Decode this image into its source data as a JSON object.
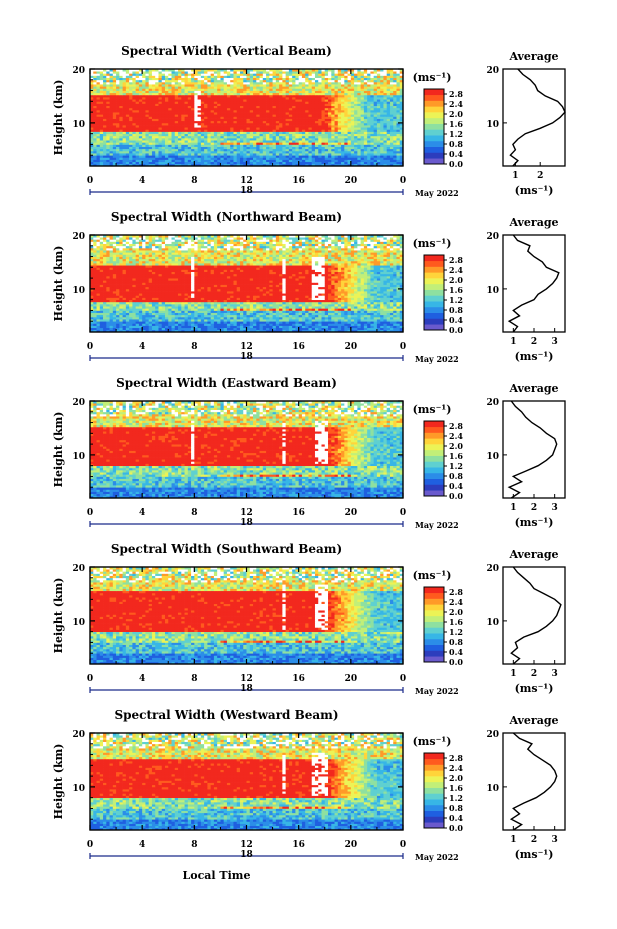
{
  "colors": {
    "colormap": [
      "#6a5acd",
      "#2c3dbd",
      "#1f5fe0",
      "#2b8de8",
      "#37b6e6",
      "#5fd0d0",
      "#8ee0a0",
      "#c2ef78",
      "#ecf356",
      "#ffd43a",
      "#ff9a28",
      "#ff5a1e",
      "#f2281e"
    ]
  },
  "chart_data": [
    {
      "type": "heatmap",
      "title": "Spectral Width (Vertical Beam)",
      "ylabel": "Height (km)",
      "xticks": [
        "0",
        "4",
        "8",
        "12",
        "16",
        "20",
        "0"
      ],
      "xlim": [
        0,
        24
      ],
      "yticks": [
        "10",
        "20"
      ],
      "ylim": [
        2,
        20
      ],
      "date_day": "18",
      "date_month": "May 2022",
      "colorbar": {
        "unit": "(ms⁻¹)",
        "ticks": [
          "2.8",
          "2.4",
          "2.0",
          "1.6",
          "1.2",
          "0.8",
          "0.4",
          "0.0"
        ],
        "range": [
          0,
          3.0
        ]
      },
      "band": {
        "bottom_km": 8.5,
        "top_km": 15.0,
        "fade_start_hour": 17.5,
        "fade_end_hour": 21.5,
        "gap_hours": [
          [
            8.0,
            8.4
          ]
        ]
      },
      "average": {
        "title": "Average",
        "xlabel": "(ms⁻¹)",
        "xticks": [
          "1",
          "2"
        ],
        "xlim": [
          0.5,
          3.0
        ],
        "profile": [
          [
            2,
            0.9
          ],
          [
            3,
            1.1
          ],
          [
            4,
            0.8
          ],
          [
            5,
            1.0
          ],
          [
            6,
            0.9
          ],
          [
            7,
            1.1
          ],
          [
            8,
            1.4
          ],
          [
            9,
            2.0
          ],
          [
            10,
            2.5
          ],
          [
            11,
            2.8
          ],
          [
            12,
            3.0
          ],
          [
            13,
            2.9
          ],
          [
            14,
            2.7
          ],
          [
            15,
            2.2
          ],
          [
            16,
            1.9
          ],
          [
            17,
            1.8
          ],
          [
            18,
            1.6
          ],
          [
            19,
            1.3
          ],
          [
            20,
            1.1
          ]
        ]
      }
    },
    {
      "type": "heatmap",
      "title": "Spectral Width (Northward Beam)",
      "ylabel": "Height (km)",
      "xticks": [
        "0",
        "4",
        "8",
        "12",
        "16",
        "20",
        "0"
      ],
      "xlim": [
        0,
        24
      ],
      "yticks": [
        "10",
        "20"
      ],
      "ylim": [
        2,
        20
      ],
      "date_day": "18",
      "date_month": "May 2022",
      "colorbar": {
        "unit": "(ms⁻¹)",
        "ticks": [
          "2.8",
          "2.4",
          "2.0",
          "1.6",
          "1.2",
          "0.8",
          "0.4",
          "0.0"
        ],
        "range": [
          0,
          3.0
        ]
      },
      "band": {
        "bottom_km": 7.5,
        "top_km": 14.5,
        "fade_start_hour": 18.0,
        "fade_end_hour": 22.0,
        "gap_hours": [
          [
            7.8,
            8.1
          ],
          [
            14.8,
            15.1
          ],
          [
            17.0,
            18.0
          ]
        ]
      },
      "average": {
        "title": "Average",
        "xlabel": "(ms⁻¹)",
        "xticks": [
          "1",
          "2",
          "3"
        ],
        "xlim": [
          0.5,
          3.5
        ],
        "profile": [
          [
            2,
            1.0
          ],
          [
            3,
            1.2
          ],
          [
            4,
            0.8
          ],
          [
            5,
            1.3
          ],
          [
            6,
            1.0
          ],
          [
            7,
            1.4
          ],
          [
            8,
            2.0
          ],
          [
            9,
            2.2
          ],
          [
            10,
            2.6
          ],
          [
            11,
            2.9
          ],
          [
            12,
            3.1
          ],
          [
            13,
            3.2
          ],
          [
            14,
            2.6
          ],
          [
            15,
            2.4
          ],
          [
            16,
            2.0
          ],
          [
            17,
            1.7
          ],
          [
            18,
            1.8
          ],
          [
            19,
            1.2
          ],
          [
            20,
            1.0
          ]
        ]
      }
    },
    {
      "type": "heatmap",
      "title": "Spectral Width (Eastward Beam)",
      "ylabel": "Height (km)",
      "xticks": [
        "0",
        "4",
        "8",
        "12",
        "16",
        "20",
        "0"
      ],
      "xlim": [
        0,
        24
      ],
      "yticks": [
        "10",
        "20"
      ],
      "ylim": [
        2,
        20
      ],
      "date_day": "18",
      "date_month": "May 2022",
      "colorbar": {
        "unit": "(ms⁻¹)",
        "ticks": [
          "2.8",
          "2.4",
          "2.0",
          "1.6",
          "1.2",
          "0.8",
          "0.4",
          "0.0"
        ],
        "range": [
          0,
          3.0
        ]
      },
      "band": {
        "bottom_km": 8.0,
        "top_km": 15.0,
        "fade_start_hour": 18.0,
        "fade_end_hour": 22.0,
        "gap_hours": [
          [
            7.8,
            8.1
          ],
          [
            14.8,
            15.1
          ],
          [
            17.2,
            18.2
          ]
        ]
      },
      "average": {
        "title": "Average",
        "xlabel": "(ms⁻¹)",
        "xticks": [
          "1",
          "2",
          "3"
        ],
        "xlim": [
          0.5,
          3.5
        ],
        "profile": [
          [
            2,
            0.9
          ],
          [
            3,
            1.3
          ],
          [
            4,
            0.8
          ],
          [
            5,
            1.4
          ],
          [
            6,
            1.0
          ],
          [
            7,
            1.6
          ],
          [
            8,
            2.2
          ],
          [
            9,
            2.6
          ],
          [
            10,
            2.9
          ],
          [
            11,
            3.0
          ],
          [
            12,
            3.1
          ],
          [
            13,
            3.0
          ],
          [
            14,
            2.6
          ],
          [
            15,
            2.3
          ],
          [
            16,
            1.9
          ],
          [
            17,
            1.6
          ],
          [
            18,
            1.4
          ],
          [
            19,
            1.1
          ],
          [
            20,
            0.9
          ]
        ]
      }
    },
    {
      "type": "heatmap",
      "title": "Spectral Width (Southward Beam)",
      "ylabel": "Height (km)",
      "xticks": [
        "0",
        "4",
        "8",
        "12",
        "16",
        "20",
        "0"
      ],
      "xlim": [
        0,
        24
      ],
      "yticks": [
        "10",
        "20"
      ],
      "ylim": [
        2,
        20
      ],
      "date_day": "18",
      "date_month": "May 2022",
      "colorbar": {
        "unit": "(ms⁻¹)",
        "ticks": [
          "2.8",
          "2.4",
          "2.0",
          "1.6",
          "1.2",
          "0.8",
          "0.4",
          "0.0"
        ],
        "range": [
          0,
          3.0
        ]
      },
      "band": {
        "bottom_km": 8.0,
        "top_km": 15.5,
        "fade_start_hour": 18.0,
        "fade_end_hour": 22.0,
        "gap_hours": [
          [
            14.8,
            15.1
          ],
          [
            17.2,
            18.2
          ]
        ]
      },
      "average": {
        "title": "Average",
        "xlabel": "(ms⁻¹)",
        "xticks": [
          "1",
          "2",
          "3"
        ],
        "xlim": [
          0.5,
          3.5
        ],
        "profile": [
          [
            2,
            1.0
          ],
          [
            3,
            1.3
          ],
          [
            4,
            0.9
          ],
          [
            5,
            1.2
          ],
          [
            6,
            1.1
          ],
          [
            7,
            1.5
          ],
          [
            8,
            2.2
          ],
          [
            9,
            2.6
          ],
          [
            10,
            2.9
          ],
          [
            11,
            3.1
          ],
          [
            12,
            3.2
          ],
          [
            13,
            3.3
          ],
          [
            14,
            3.0
          ],
          [
            15,
            2.5
          ],
          [
            16,
            2.0
          ],
          [
            17,
            1.8
          ],
          [
            18,
            1.5
          ],
          [
            19,
            1.2
          ],
          [
            20,
            1.0
          ]
        ]
      }
    },
    {
      "type": "heatmap",
      "title": "Spectral Width (Westward Beam)",
      "ylabel": "Height (km)",
      "xticks": [
        "0",
        "4",
        "8",
        "12",
        "16",
        "20",
        "0"
      ],
      "xlim": [
        0,
        24
      ],
      "yticks": [
        "10",
        "20"
      ],
      "ylim": [
        2,
        20
      ],
      "date_day": "18",
      "date_month": "May 2022",
      "xlabel": "Local Time",
      "colorbar": {
        "unit": "(ms⁻¹)",
        "ticks": [
          "2.8",
          "2.4",
          "2.0",
          "1.6",
          "1.2",
          "0.8",
          "0.4",
          "0.0"
        ],
        "range": [
          0,
          3.0
        ]
      },
      "band": {
        "bottom_km": 8.0,
        "top_km": 15.0,
        "fade_start_hour": 18.0,
        "fade_end_hour": 22.0,
        "gap_hours": [
          [
            14.8,
            15.1
          ],
          [
            17.0,
            18.2
          ]
        ]
      },
      "average": {
        "title": "Average",
        "xlabel": "(ms⁻¹)",
        "xticks": [
          "1",
          "2",
          "3"
        ],
        "xlim": [
          0.5,
          3.5
        ],
        "profile": [
          [
            2,
            1.0
          ],
          [
            3,
            1.4
          ],
          [
            4,
            0.9
          ],
          [
            5,
            1.3
          ],
          [
            6,
            1.0
          ],
          [
            7,
            1.5
          ],
          [
            8,
            2.1
          ],
          [
            9,
            2.5
          ],
          [
            10,
            2.8
          ],
          [
            11,
            3.0
          ],
          [
            12,
            3.1
          ],
          [
            13,
            3.0
          ],
          [
            14,
            2.8
          ],
          [
            15,
            2.4
          ],
          [
            16,
            2.0
          ],
          [
            17,
            1.7
          ],
          [
            18,
            1.9
          ],
          [
            19,
            1.3
          ],
          [
            20,
            1.0
          ]
        ]
      }
    }
  ]
}
